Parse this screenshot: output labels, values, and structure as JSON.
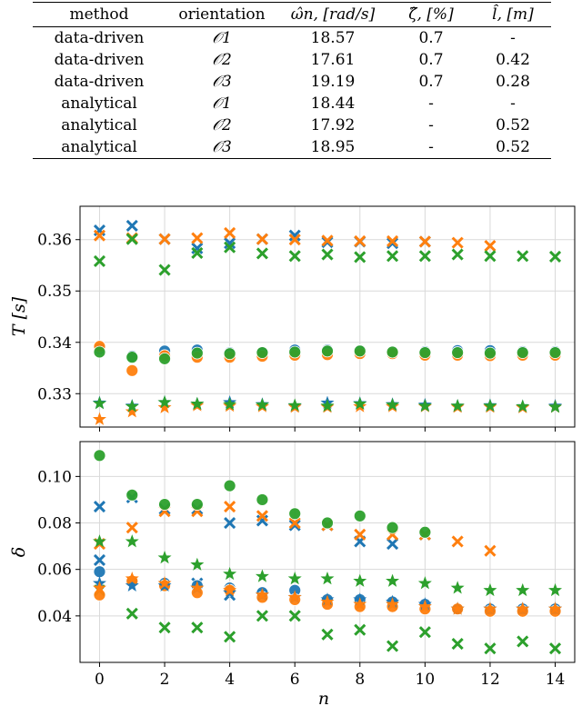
{
  "table": {
    "headers": [
      "method",
      "orientation",
      "ω̂n, [rad/s]",
      "ζ̂, [%]",
      "l̂, [m]"
    ],
    "rows": [
      [
        "data-driven",
        "𝒪1",
        "18.57",
        "0.7",
        "-"
      ],
      [
        "data-driven",
        "𝒪2",
        "17.61",
        "0.7",
        "0.42"
      ],
      [
        "data-driven",
        "𝒪3",
        "19.19",
        "0.7",
        "0.28"
      ],
      [
        "analytical",
        "𝒪1",
        "18.44",
        "-",
        "-"
      ],
      [
        "analytical",
        "𝒪2",
        "17.92",
        "-",
        "0.52"
      ],
      [
        "analytical",
        "𝒪3",
        "18.95",
        "-",
        "0.52"
      ]
    ]
  },
  "colors": {
    "blue": "#1f77b4",
    "orange": "#ff7f0e",
    "green": "#2ca02c",
    "grid": "#d9d9d9"
  },
  "chart_data": [
    {
      "type": "scatter",
      "title": "",
      "xlabel": "",
      "ylabel": "T [s]",
      "xlim": [
        -0.6,
        14.6
      ],
      "ylim": [
        0.3235,
        0.3665
      ],
      "xticks": [
        0,
        2,
        4,
        6,
        8,
        10,
        12,
        14
      ],
      "yticks": [
        0.33,
        0.34,
        0.35,
        0.36
      ],
      "ytick_labels": [
        "0.33",
        "0.34",
        "0.35",
        "0.36"
      ],
      "series": [
        {
          "name": "blue-cross",
          "color": "blue",
          "marker": "x",
          "x": [
            0,
            1,
            2,
            3,
            4,
            5,
            6,
            7,
            8,
            9,
            10
          ],
          "y": [
            0.3618,
            0.3627,
            0.3601,
            0.3583,
            0.3593,
            0.3601,
            0.3608,
            0.3595,
            0.3596,
            0.3593,
            0.3596
          ]
        },
        {
          "name": "orange-cross",
          "color": "orange",
          "marker": "x",
          "x": [
            0,
            1,
            2,
            3,
            4,
            5,
            6,
            7,
            8,
            9,
            10,
            11,
            12
          ],
          "y": [
            0.3608,
            0.3603,
            0.3601,
            0.3603,
            0.3613,
            0.3601,
            0.36,
            0.3598,
            0.3597,
            0.3597,
            0.3596,
            0.3594,
            0.3588
          ]
        },
        {
          "name": "green-cross",
          "color": "green",
          "marker": "x",
          "x": [
            0,
            1,
            2,
            3,
            4,
            5,
            6,
            7,
            8,
            9,
            10,
            11,
            12,
            13,
            14
          ],
          "y": [
            0.3558,
            0.3601,
            0.3541,
            0.3574,
            0.3585,
            0.3573,
            0.3568,
            0.3571,
            0.3566,
            0.3568,
            0.3568,
            0.3571,
            0.3568,
            0.3568,
            0.3567
          ]
        },
        {
          "name": "blue-circle",
          "color": "blue",
          "marker": "o",
          "x": [
            0,
            1,
            2,
            3,
            4,
            5,
            6,
            7,
            8,
            9,
            10,
            11,
            12,
            13,
            14
          ],
          "y": [
            0.3388,
            0.3373,
            0.3383,
            0.3385,
            0.338,
            0.3381,
            0.3385,
            0.3385,
            0.3384,
            0.3381,
            0.3382,
            0.3384,
            0.3384,
            0.3382,
            0.3382
          ]
        },
        {
          "name": "orange-circle",
          "color": "orange",
          "marker": "o",
          "x": [
            0,
            1,
            2,
            3,
            4,
            5,
            6,
            7,
            8,
            9,
            10,
            11,
            12,
            13,
            14
          ],
          "y": [
            0.3392,
            0.3345,
            0.3374,
            0.3371,
            0.3371,
            0.3373,
            0.3375,
            0.3376,
            0.3378,
            0.3378,
            0.3375,
            0.3375,
            0.3374,
            0.3375,
            0.3375
          ]
        },
        {
          "name": "green-circle",
          "color": "green",
          "marker": "o",
          "x": [
            0,
            1,
            2,
            3,
            4,
            5,
            6,
            7,
            8,
            9,
            10,
            11,
            12,
            13,
            14
          ],
          "y": [
            0.3381,
            0.3371,
            0.3368,
            0.3379,
            0.3378,
            0.338,
            0.3381,
            0.3383,
            0.3383,
            0.3381,
            0.338,
            0.338,
            0.3379,
            0.338,
            0.338
          ]
        },
        {
          "name": "blue-star",
          "color": "blue",
          "marker": "*",
          "x": [
            0,
            1,
            2,
            3,
            4,
            5,
            6,
            7,
            8,
            9,
            10,
            11,
            12,
            13,
            14
          ],
          "y": [
            0.3282,
            0.3276,
            0.3283,
            0.328,
            0.3283,
            0.3279,
            0.3276,
            0.3282,
            0.3281,
            0.3279,
            0.3278,
            0.3276,
            0.3277,
            0.3275,
            0.3276
          ]
        },
        {
          "name": "orange-star",
          "color": "orange",
          "marker": "*",
          "x": [
            0,
            1,
            2,
            3,
            4,
            5,
            6,
            7,
            8,
            9,
            10,
            11,
            12,
            13,
            14
          ],
          "y": [
            0.325,
            0.3265,
            0.3273,
            0.3277,
            0.3276,
            0.3275,
            0.3274,
            0.3274,
            0.3275,
            0.3275,
            0.3275,
            0.3274,
            0.3274,
            0.3273,
            0.3274
          ]
        },
        {
          "name": "green-star",
          "color": "green",
          "marker": "*",
          "x": [
            0,
            1,
            2,
            3,
            4,
            5,
            6,
            7,
            8,
            9,
            10,
            11,
            12,
            13,
            14
          ],
          "y": [
            0.3281,
            0.3275,
            0.3283,
            0.328,
            0.3279,
            0.3278,
            0.3277,
            0.3276,
            0.328,
            0.3278,
            0.3276,
            0.3276,
            0.3276,
            0.3275,
            0.3274
          ]
        }
      ]
    },
    {
      "type": "scatter",
      "title": "",
      "xlabel": "n",
      "ylabel": "δ",
      "xlim": [
        -0.6,
        14.6
      ],
      "ylim": [
        0.02,
        0.115
      ],
      "xticks": [
        0,
        2,
        4,
        6,
        8,
        10,
        12,
        14
      ],
      "xtick_labels": [
        "0",
        "2",
        "4",
        "6",
        "8",
        "10",
        "12",
        "14"
      ],
      "yticks": [
        0.04,
        0.06,
        0.08,
        0.1
      ],
      "ytick_labels": [
        "0.04",
        "0.06",
        "0.08",
        "0.10"
      ],
      "series": [
        {
          "name": "blue-cross",
          "color": "blue",
          "marker": "x",
          "x": [
            0,
            1,
            2,
            3,
            4,
            5,
            6,
            7,
            8,
            9,
            10
          ],
          "y": [
            0.087,
            0.091,
            0.086,
            0.086,
            0.08,
            0.081,
            0.079,
            0.079,
            0.072,
            0.071,
            0.075
          ]
        },
        {
          "name": "orange-cross",
          "color": "orange",
          "marker": "x",
          "x": [
            0,
            1,
            2,
            3,
            4,
            5,
            6,
            7,
            8,
            9,
            10,
            11,
            12
          ],
          "y": [
            0.071,
            0.078,
            0.085,
            0.085,
            0.087,
            0.083,
            0.08,
            0.079,
            0.075,
            0.075,
            0.075,
            0.072,
            0.068
          ]
        },
        {
          "name": "green-cross",
          "color": "green",
          "marker": "x",
          "x": [
            0,
            1,
            2,
            3,
            4,
            5,
            6,
            7,
            8,
            9,
            10,
            11,
            12,
            13,
            14
          ],
          "y": [
            0.051,
            0.041,
            0.035,
            0.035,
            0.031,
            0.04,
            0.04,
            0.032,
            0.034,
            0.027,
            0.033,
            0.028,
            0.026,
            0.029,
            0.026
          ]
        },
        {
          "name": "blue-cross-2",
          "color": "blue",
          "marker": "x",
          "x": [
            0,
            3,
            4,
            5
          ],
          "y": [
            0.064,
            0.054,
            0.049,
            0.049
          ]
        },
        {
          "name": "blue-circle",
          "color": "blue",
          "marker": "o",
          "x": [
            0,
            1,
            2,
            3,
            4,
            5,
            6,
            7,
            8,
            9,
            10,
            11,
            12,
            13,
            14
          ],
          "y": [
            0.059,
            0.055,
            0.054,
            0.053,
            0.052,
            0.05,
            0.051,
            0.047,
            0.047,
            0.046,
            0.045,
            0.043,
            0.043,
            0.043,
            0.043
          ]
        },
        {
          "name": "orange-circle",
          "color": "orange",
          "marker": "o",
          "x": [
            0,
            1,
            2,
            3,
            4,
            5,
            6,
            7,
            8,
            9,
            10,
            11,
            12,
            13,
            14
          ],
          "y": [
            0.049,
            0.055,
            0.053,
            0.05,
            0.051,
            0.048,
            0.047,
            0.045,
            0.044,
            0.044,
            0.043,
            0.043,
            0.042,
            0.042,
            0.042
          ]
        },
        {
          "name": "green-circle",
          "color": "green",
          "marker": "o",
          "x": [
            0,
            1,
            2,
            3,
            4,
            5,
            6,
            7,
            8,
            9,
            10
          ],
          "y": [
            0.109,
            0.092,
            0.088,
            0.088,
            0.096,
            0.09,
            0.084,
            0.08,
            0.083,
            0.078,
            0.076
          ]
        },
        {
          "name": "blue-star",
          "color": "blue",
          "marker": "*",
          "x": [
            0,
            1,
            2,
            3,
            4,
            5,
            6,
            7,
            8,
            9,
            10,
            11,
            12,
            13,
            14
          ],
          "y": [
            0.054,
            0.053,
            0.053,
            0.052,
            0.05,
            0.049,
            0.048,
            0.047,
            0.047,
            0.046,
            0.045,
            0.043,
            0.043,
            0.043,
            0.043
          ]
        },
        {
          "name": "orange-star",
          "color": "orange",
          "marker": "*",
          "x": [
            0,
            1,
            2,
            3,
            4,
            5,
            6,
            7,
            8,
            9,
            10,
            11,
            12,
            13,
            14
          ],
          "y": [
            0.052,
            0.056,
            0.054,
            0.052,
            0.051,
            0.049,
            0.048,
            0.046,
            0.045,
            0.045,
            0.044,
            0.043,
            0.043,
            0.043,
            0.043
          ]
        },
        {
          "name": "green-star",
          "color": "green",
          "marker": "*",
          "x": [
            0,
            1,
            2,
            3,
            4,
            5,
            6,
            7,
            8,
            9,
            10,
            11,
            12,
            13,
            14
          ],
          "y": [
            0.072,
            0.072,
            0.065,
            0.062,
            0.058,
            0.057,
            0.056,
            0.056,
            0.055,
            0.055,
            0.054,
            0.052,
            0.051,
            0.051,
            0.051
          ]
        }
      ]
    }
  ]
}
